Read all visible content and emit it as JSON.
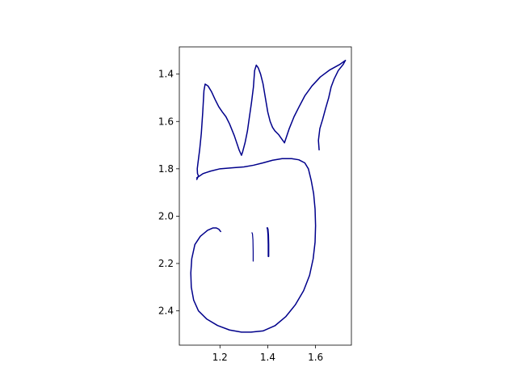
{
  "chart_data": {
    "type": "line",
    "title": "",
    "xlabel": "",
    "ylabel": "",
    "xlim": [
      1.03,
      1.75
    ],
    "ylim": [
      2.545,
      1.285
    ],
    "y_inverted": true,
    "grid": false,
    "legend": "none",
    "x_ticks": [
      {
        "value": 1.2,
        "label": "1.2"
      },
      {
        "value": 1.4,
        "label": "1.4"
      },
      {
        "value": 1.6,
        "label": "1.6"
      }
    ],
    "y_ticks": [
      {
        "value": 1.4,
        "label": "1.4"
      },
      {
        "value": 1.6,
        "label": "1.6"
      },
      {
        "value": 1.8,
        "label": "1.8"
      },
      {
        "value": 2.0,
        "label": "2.0"
      },
      {
        "value": 2.2,
        "label": "2.2"
      },
      {
        "value": 2.4,
        "label": "2.4"
      }
    ],
    "line_color": "#00008b",
    "series": [
      {
        "stroke_width": 1.5,
        "x": [
          1.615,
          1.612,
          1.618,
          1.63,
          1.642,
          1.655,
          1.665,
          1.678,
          1.695,
          1.715,
          1.725,
          1.7,
          1.66,
          1.62,
          1.585,
          1.555,
          1.53,
          1.51,
          1.49,
          1.47
        ],
        "y": [
          1.72,
          1.68,
          1.63,
          1.59,
          1.545,
          1.5,
          1.455,
          1.42,
          1.385,
          1.36,
          1.342,
          1.36,
          1.382,
          1.412,
          1.45,
          1.492,
          1.54,
          1.58,
          1.63,
          1.69
        ]
      },
      {
        "stroke_width": 1.5,
        "x": [
          1.47,
          1.46,
          1.445,
          1.43,
          1.42,
          1.41,
          1.4,
          1.39,
          1.38,
          1.37,
          1.36,
          1.352,
          1.345,
          1.34,
          1.332,
          1.322,
          1.315,
          1.305,
          1.295,
          1.29,
          1.28,
          1.26,
          1.24,
          1.225,
          1.21,
          1.195,
          1.18,
          1.165,
          1.15,
          1.138,
          1.133,
          1.128,
          1.122,
          1.115,
          1.108,
          1.105,
          1.106,
          1.11,
          1.103
        ],
        "y": [
          1.69,
          1.676,
          1.655,
          1.64,
          1.625,
          1.6,
          1.56,
          1.5,
          1.44,
          1.4,
          1.373,
          1.362,
          1.385,
          1.455,
          1.52,
          1.59,
          1.64,
          1.69,
          1.728,
          1.743,
          1.72,
          1.66,
          1.61,
          1.58,
          1.56,
          1.538,
          1.508,
          1.475,
          1.45,
          1.442,
          1.47,
          1.56,
          1.65,
          1.72,
          1.775,
          1.8,
          1.82,
          1.83,
          1.845
        ]
      },
      {
        "stroke_width": 1.5,
        "x": [
          1.103,
          1.115,
          1.13,
          1.16,
          1.2,
          1.25,
          1.3,
          1.34,
          1.38,
          1.42,
          1.46,
          1.5,
          1.53,
          1.555,
          1.57,
          1.582,
          1.592,
          1.598,
          1.6,
          1.598,
          1.59,
          1.575,
          1.55,
          1.515,
          1.475,
          1.43,
          1.38,
          1.33,
          1.29,
          1.24,
          1.19,
          1.145,
          1.11,
          1.09,
          1.08,
          1.078,
          1.082,
          1.095,
          1.118,
          1.148,
          1.17,
          1.185,
          1.195,
          1.203
        ],
        "y": [
          1.838,
          1.83,
          1.82,
          1.81,
          1.8,
          1.796,
          1.792,
          1.785,
          1.775,
          1.764,
          1.757,
          1.757,
          1.762,
          1.775,
          1.8,
          1.85,
          1.905,
          1.97,
          2.04,
          2.11,
          2.18,
          2.25,
          2.315,
          2.375,
          2.425,
          2.463,
          2.485,
          2.49,
          2.49,
          2.481,
          2.462,
          2.435,
          2.4,
          2.355,
          2.3,
          2.24,
          2.18,
          2.12,
          2.085,
          2.06,
          2.05,
          2.05,
          2.055,
          2.065
        ]
      },
      {
        "stroke_width": 1.2,
        "x": [
          1.334,
          1.336,
          1.338,
          1.339,
          1.339
        ],
        "y": [
          2.07,
          2.075,
          2.1,
          2.15,
          2.19
        ]
      },
      {
        "stroke_width": 2.0,
        "x": [
          1.398,
          1.4,
          1.402,
          1.403,
          1.403
        ],
        "y": [
          2.05,
          2.055,
          2.08,
          2.12,
          2.17
        ]
      }
    ]
  }
}
